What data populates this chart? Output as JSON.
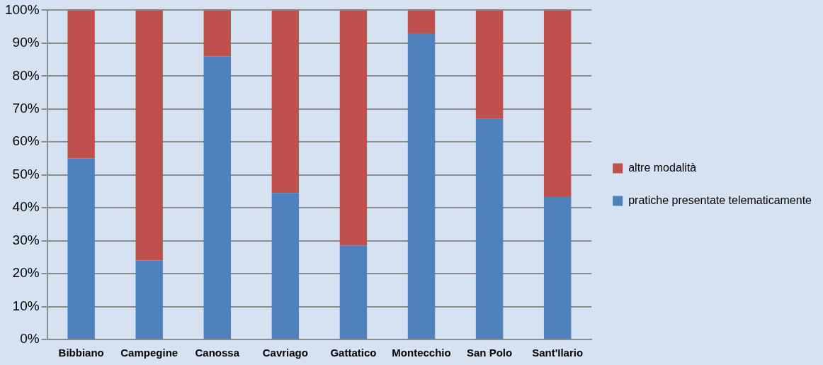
{
  "chart_data": {
    "type": "bar",
    "stacked": true,
    "categories": [
      "Bibbiano",
      "Campegine",
      "Canossa",
      "Cavriago",
      "Gattatico",
      "Montecchio",
      "San Polo",
      "Sant'Ilario"
    ],
    "series": [
      {
        "name": "pratiche presentate telematicamente",
        "color": "#4f81bd",
        "values": [
          55,
          24,
          86,
          44.5,
          28.5,
          93,
          67,
          43.5
        ]
      },
      {
        "name": "altre modalità",
        "color": "#c0504d",
        "values": [
          45,
          76,
          14,
          55.5,
          71.5,
          7,
          33,
          56.5
        ]
      }
    ],
    "ylim": [
      0,
      100
    ],
    "yticks": [
      {
        "value": 0,
        "label": "0%"
      },
      {
        "value": 10,
        "label": "10%"
      },
      {
        "value": 20,
        "label": "20%"
      },
      {
        "value": 30,
        "label": "30%"
      },
      {
        "value": 40,
        "label": "40%"
      },
      {
        "value": 50,
        "label": "50%"
      },
      {
        "value": 60,
        "label": "60%"
      },
      {
        "value": 70,
        "label": "70%"
      },
      {
        "value": 80,
        "label": "80%"
      },
      {
        "value": 90,
        "label": "90%"
      },
      {
        "value": 100,
        "label": "100%"
      }
    ],
    "grid": "y",
    "legend": "right"
  }
}
